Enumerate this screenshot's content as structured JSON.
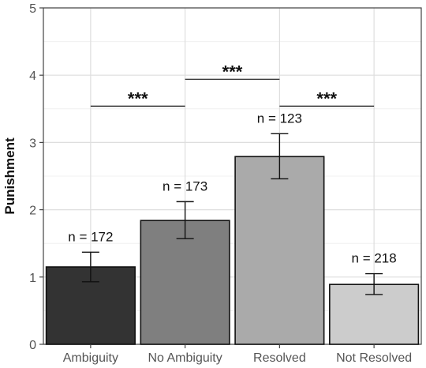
{
  "chart_data": {
    "type": "bar",
    "title": "",
    "xlabel": "",
    "ylabel": "Punishment",
    "ylim": [
      0,
      5
    ],
    "yticks": [
      "0",
      "1",
      "2",
      "3",
      "4",
      "5"
    ],
    "grid": true,
    "categories": [
      "Ambiguity",
      "No Ambiguity",
      "Resolved",
      "Not Resolved"
    ],
    "values": [
      1.15,
      1.84,
      2.79,
      0.89
    ],
    "error_low": [
      0.93,
      1.57,
      2.46,
      0.74
    ],
    "error_high": [
      1.37,
      2.12,
      3.13,
      1.05
    ],
    "colors": [
      "#333333",
      "#7f7f7f",
      "#aaaaaa",
      "#cccccc"
    ],
    "data_labels": [
      "n = 172",
      "n = 173",
      "n = 123",
      "n = 218"
    ],
    "significance": [
      {
        "from": 0,
        "to": 1,
        "y": 3.54,
        "label": "***"
      },
      {
        "from": 1,
        "to": 2,
        "y": 3.94,
        "label": "***"
      },
      {
        "from": 2,
        "to": 3,
        "y": 3.54,
        "label": "***"
      }
    ]
  }
}
